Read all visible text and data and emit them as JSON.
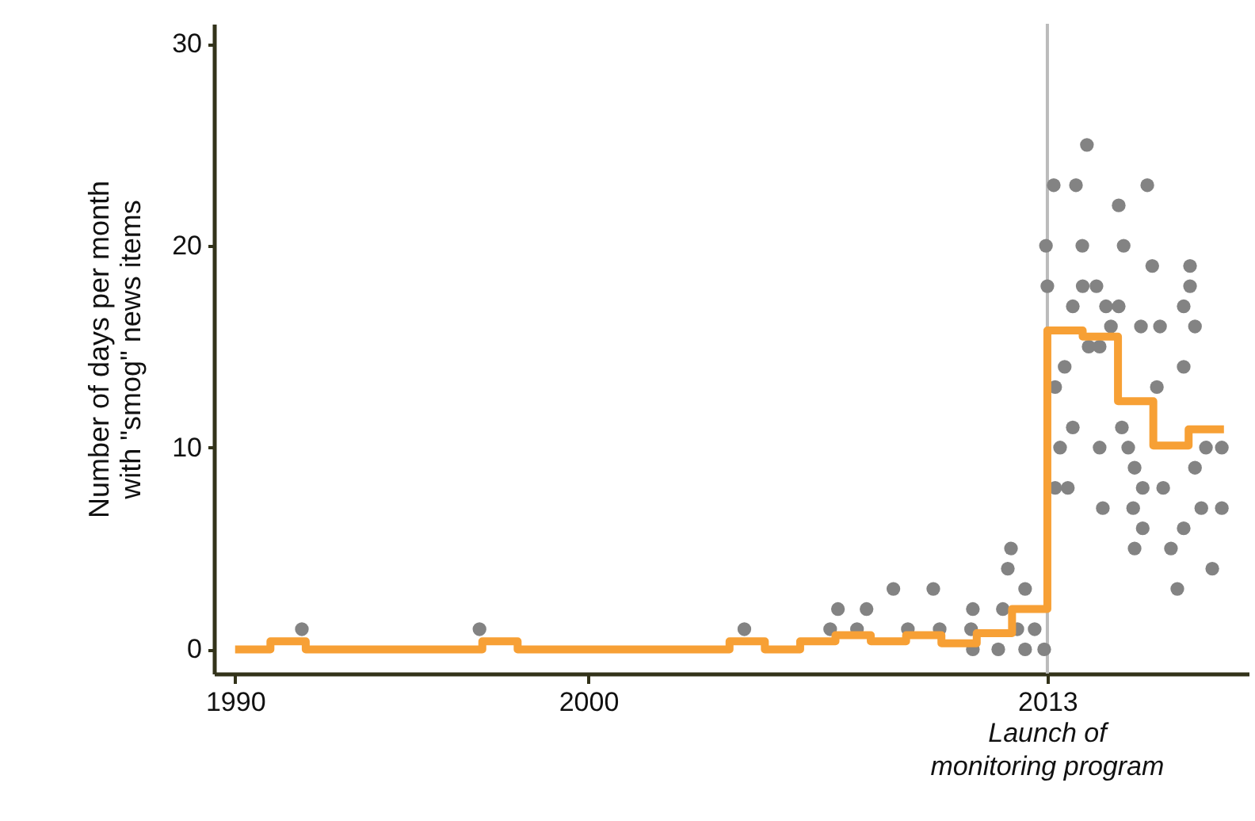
{
  "chart_data": {
    "type": "scatter",
    "ylabel": "Number of days per month with \"smog\" news items",
    "xlim": [
      1989.4,
      2018.7
    ],
    "ylim": [
      -1.2,
      31
    ],
    "xticks": [
      1990,
      2000,
      2013
    ],
    "yticks": [
      0,
      10,
      20,
      30
    ],
    "ref_lines": [
      {
        "axis": "x",
        "value": 2013,
        "label": "Launch of monitoring program",
        "color": "#bbbbbb"
      }
    ],
    "series": [
      {
        "marker": "circle",
        "color": "#838383",
        "x": [
          1991.89,
          1996.92,
          2004.42,
          2006.85,
          2007.07,
          2007.61,
          2007.88,
          2008.64,
          2009.05,
          2009.77,
          2009.95,
          2010.84,
          2010.89,
          2010.89,
          2011.61,
          2011.74,
          2011.88,
          2011.97,
          2012.15,
          2012.37,
          2012.37,
          2012.64,
          2012.91,
          2012.96,
          2013.0,
          2013.18,
          2013.22,
          2013.22,
          2013.36,
          2013.49,
          2013.58,
          2013.72,
          2013.72,
          2013.81,
          2013.99,
          2014.0,
          2014.12,
          2014.17,
          2014.39,
          2014.48,
          2014.48,
          2014.57,
          2014.66,
          2014.8,
          2015.02,
          2015.02,
          2015.11,
          2015.16,
          2015.29,
          2015.43,
          2015.47,
          2015.47,
          2015.65,
          2015.7,
          2015.7,
          2015.83,
          2015.97,
          2016.1,
          2016.19,
          2016.28,
          2016.5,
          2016.68,
          2016.86,
          2016.86,
          2016.86,
          2017.04,
          2017.04,
          2017.18,
          2017.18,
          2017.36,
          2017.49,
          2017.67,
          2017.94,
          2017.94
        ],
        "values": [
          1,
          1,
          1,
          1,
          2,
          1,
          2,
          3,
          1,
          3,
          1,
          1,
          2,
          0,
          0,
          2,
          4,
          5,
          1,
          3,
          0,
          1,
          0,
          20,
          18,
          23,
          13,
          8,
          10,
          14,
          8,
          17,
          11,
          23,
          20,
          18,
          25,
          15,
          18,
          15,
          10,
          7,
          17,
          16,
          22,
          17,
          11,
          20,
          10,
          7,
          9,
          5,
          16,
          8,
          6,
          23,
          19,
          13,
          16,
          8,
          5,
          3,
          17,
          14,
          6,
          19,
          18,
          16,
          9,
          7,
          10,
          4,
          10,
          7
        ]
      },
      {
        "type": "step",
        "color": "#f7a035",
        "x": [
          1990,
          1991,
          1992,
          1993,
          1994,
          1995,
          1996,
          1997,
          1998,
          1999,
          2000,
          2001,
          2002,
          2003,
          2004,
          2005,
          2006,
          2007,
          2008,
          2009,
          2010,
          2011,
          2012,
          2013,
          2014,
          2015,
          2016,
          2017,
          2018
        ],
        "values": [
          0,
          0.4,
          0,
          0,
          0,
          0,
          0,
          0.4,
          0,
          0,
          0,
          0,
          0,
          0,
          0.4,
          0,
          0.4,
          0.7,
          0.4,
          0.7,
          0.3,
          0.8,
          2,
          15.8,
          15.5,
          12.3,
          10.1,
          10.9,
          10.9
        ]
      }
    ]
  }
}
